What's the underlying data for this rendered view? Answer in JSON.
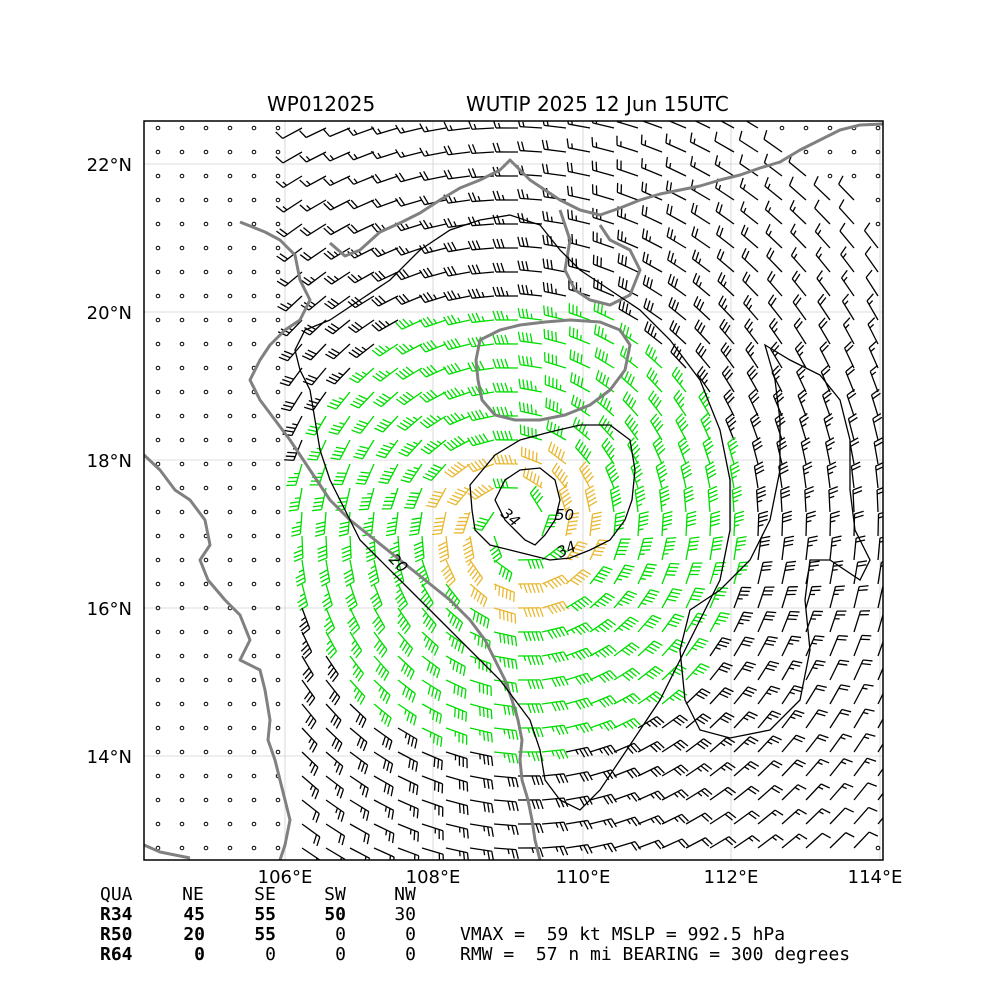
{
  "header": {
    "storm_id": "WP012025",
    "storm_time": "WUTIP 2025 12 Jun 15UTC"
  },
  "map": {
    "lon_range": [
      104.4,
      114.1
    ],
    "lat_range": [
      12.6,
      22.6
    ],
    "lat_ticks": [
      {
        "value": 22,
        "label": "22°N"
      },
      {
        "value": 20,
        "label": "20°N"
      },
      {
        "value": 18,
        "label": "18°N"
      },
      {
        "value": 16,
        "label": "16°N"
      },
      {
        "value": 14,
        "label": "14°N"
      }
    ],
    "lon_ticks": [
      {
        "value": 106,
        "label": "106°E"
      },
      {
        "value": 108,
        "label": "108°E"
      },
      {
        "value": 110,
        "label": "110°E"
      },
      {
        "value": 112,
        "label": "112°E"
      },
      {
        "value": 114,
        "label": "114°E"
      }
    ],
    "storm_center": {
      "lon": 109.3,
      "lat": 17.1
    },
    "contour_labels": [
      "34",
      "50",
      "34",
      "20"
    ],
    "colors": {
      "coastline": "#808080",
      "barb_weak": "#000000",
      "barb_34kt": "#00dd00",
      "barb_50kt": "#e8b830",
      "barb_64kt": "#e06010",
      "grid": "#cccccc"
    }
  },
  "wind_radii": {
    "header": [
      "QUA",
      "NE",
      "SE",
      "SW",
      "NW"
    ],
    "rows": [
      {
        "label": "R34",
        "values": [
          "45",
          "55",
          "50",
          "30"
        ]
      },
      {
        "label": "R50",
        "values": [
          "20",
          "55",
          "0",
          "0"
        ]
      },
      {
        "label": "R64",
        "values": [
          "0",
          "0",
          "0",
          "0"
        ]
      }
    ]
  },
  "summary": {
    "line1": "VMAX =  59 kt MSLP = 992.5 hPa",
    "line2": "RMW =  57 n mi BEARING = 300 degrees"
  }
}
